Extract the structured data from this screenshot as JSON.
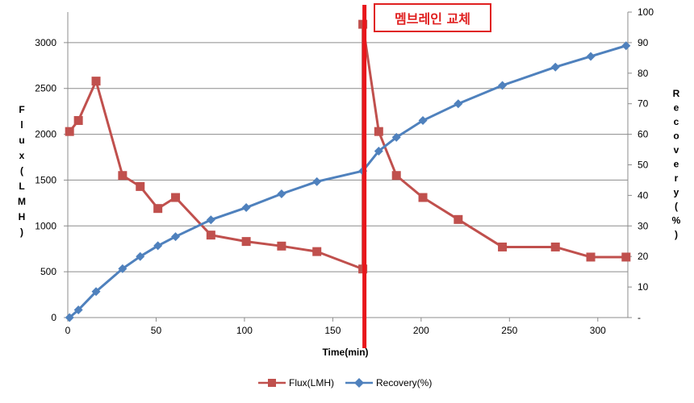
{
  "chart_data": {
    "type": "line",
    "xlabel": "Time(min)",
    "ylabel_left": "Flux(LMH)",
    "ylabel_right": "Recovery(%)",
    "xlim": [
      0,
      317
    ],
    "xticks": [
      0,
      50,
      100,
      150,
      200,
      250,
      300
    ],
    "ylim_left": [
      0,
      3333
    ],
    "yticks_left": [
      0,
      500,
      1000,
      1500,
      2000,
      2500,
      3000
    ],
    "ylim_right": [
      0,
      100
    ],
    "yticks_right": [
      "-",
      "10",
      "20",
      "30",
      "40",
      "50",
      "60",
      "70",
      "80",
      "90",
      "100"
    ],
    "grid": true,
    "legend_position": "bottom",
    "annotation": {
      "x": 167,
      "label": "멤브레인 교체"
    },
    "series": [
      {
        "name": "Flux(LMH)",
        "axis": "left",
        "color": "#c0504d",
        "marker": "square",
        "x": [
          1,
          6,
          16,
          31,
          41,
          51,
          61,
          81,
          101,
          121,
          141,
          167,
          167,
          176,
          186,
          201,
          221,
          246,
          276,
          296,
          316
        ],
        "y": [
          2030,
          2150,
          2580,
          1550,
          1430,
          1190,
          1310,
          900,
          830,
          780,
          720,
          530,
          3200,
          2030,
          1550,
          1310,
          1070,
          770,
          770,
          660,
          660
        ]
      },
      {
        "name": "Recovery(%)",
        "axis": "right",
        "color": "#4f81bd",
        "marker": "diamond",
        "x": [
          1,
          6,
          16,
          31,
          41,
          51,
          61,
          81,
          101,
          121,
          141,
          167,
          176,
          186,
          201,
          221,
          246,
          276,
          296,
          316
        ],
        "y": [
          0,
          2.5,
          8.5,
          16,
          20,
          23.5,
          26.5,
          32,
          36,
          40.5,
          44.5,
          48,
          54.5,
          59,
          64.5,
          70,
          76,
          82,
          85.5,
          89
        ]
      }
    ]
  },
  "ylabel_left_chars": [
    "F",
    "l",
    "u",
    "x",
    "(",
    "L",
    "M",
    "H",
    ")"
  ],
  "ylabel_right_chars": [
    "R",
    "e",
    "c",
    "o",
    "v",
    "e",
    "r",
    "y",
    "(",
    "%",
    ")"
  ]
}
